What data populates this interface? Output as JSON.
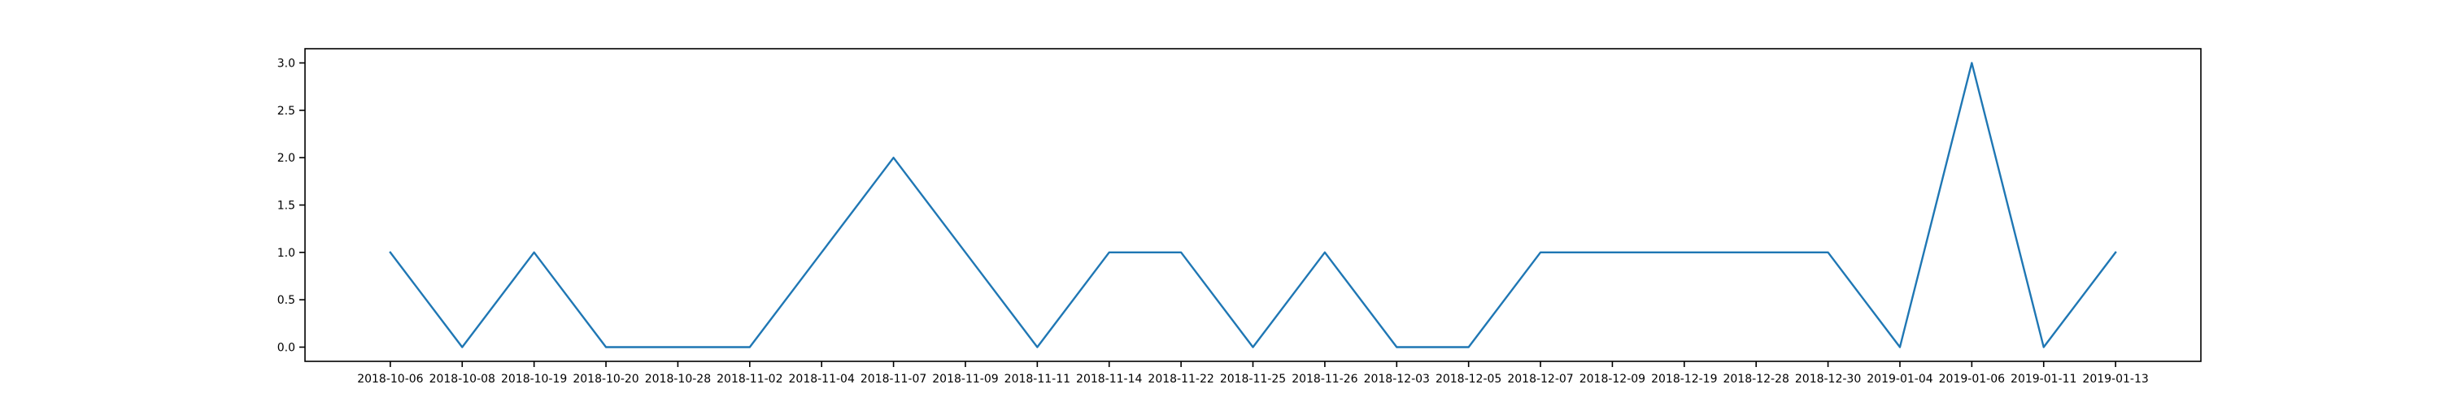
{
  "chart_data": {
    "type": "line",
    "title": "",
    "xlabel": "",
    "ylabel": "",
    "x": [
      "2018-10-06",
      "2018-10-08",
      "2018-10-19",
      "2018-10-20",
      "2018-10-28",
      "2018-11-02",
      "2018-11-04",
      "2018-11-07",
      "2018-11-09",
      "2018-11-11",
      "2018-11-14",
      "2018-11-22",
      "2018-11-25",
      "2018-11-26",
      "2018-12-03",
      "2018-12-05",
      "2018-12-07",
      "2018-12-09",
      "2018-12-19",
      "2018-12-28",
      "2018-12-30",
      "2019-01-04",
      "2019-01-06",
      "2019-01-11",
      "2019-01-13"
    ],
    "series": [
      {
        "values": [
          1,
          0,
          1,
          0,
          0,
          0,
          1,
          2,
          1,
          0,
          1,
          1,
          0,
          1,
          0,
          0,
          1,
          1,
          1,
          1,
          1,
          0,
          3,
          0,
          1
        ],
        "color": "#1f77b4"
      }
    ],
    "ylim": [
      -0.15,
      3.15
    ],
    "yticks": [
      0.0,
      0.5,
      1.0,
      1.5,
      2.0,
      2.5,
      3.0
    ],
    "ytick_labels": [
      "0.0",
      "0.5",
      "1.0",
      "1.5",
      "2.0",
      "2.5",
      "3.0"
    ],
    "grid": false,
    "legend": "none"
  }
}
